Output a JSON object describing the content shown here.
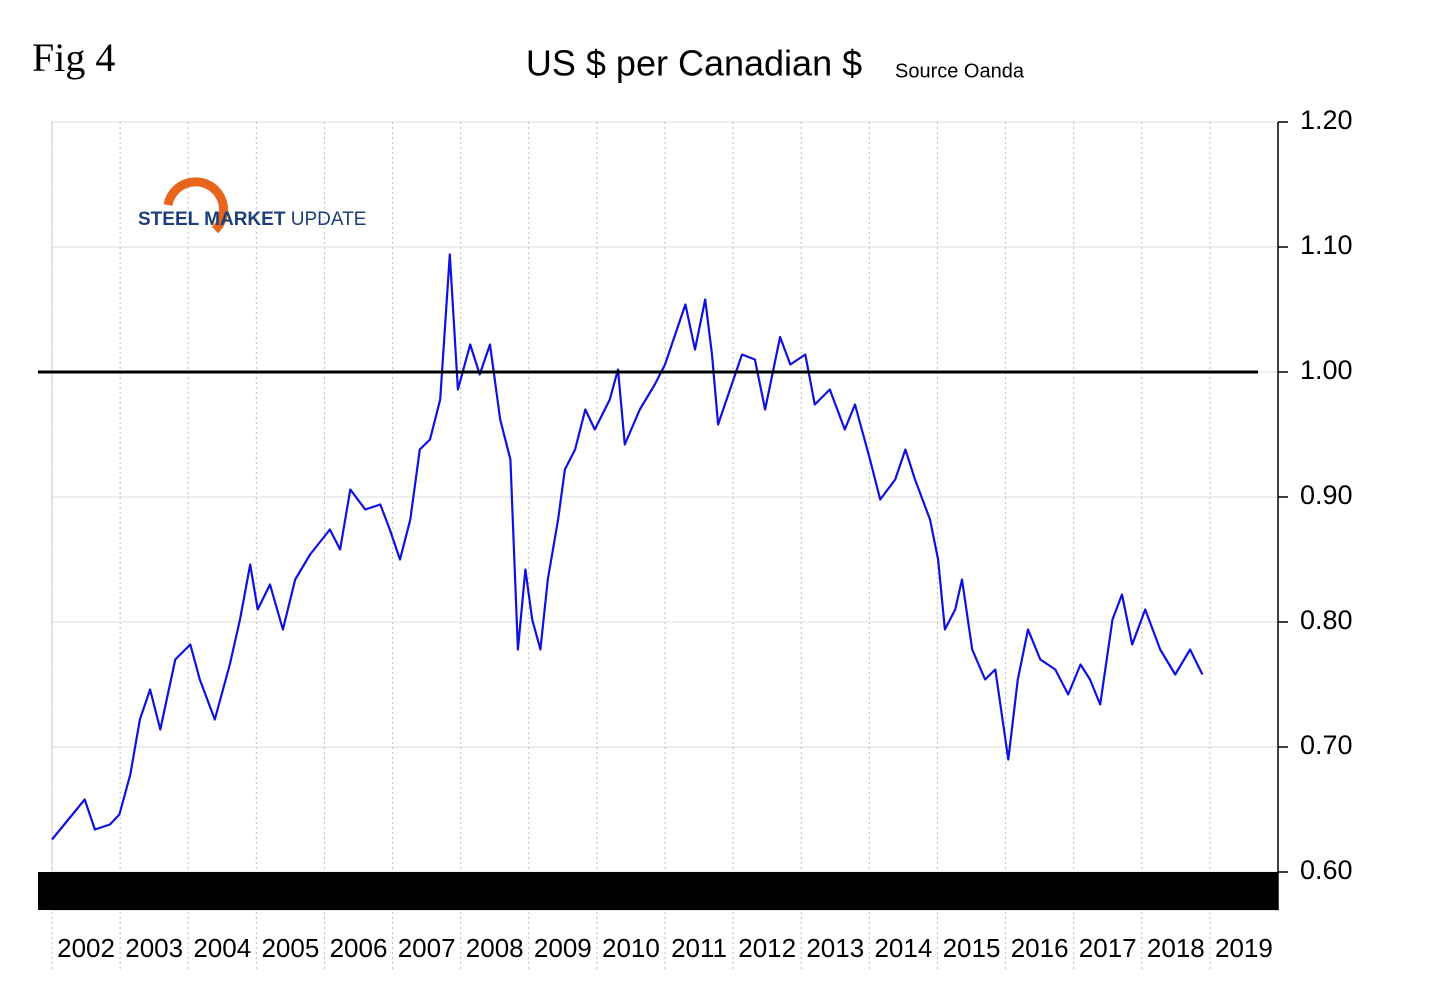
{
  "chart_data": {
    "type": "line",
    "figure_label": "Fig 4",
    "title": "US $ per Canadian $",
    "subtitle": "Source Oanda",
    "logo": {
      "strong": "STEEL MARKET",
      "light": "UPDATE"
    },
    "xlim": [
      2002,
      2020
    ],
    "xticks": [
      2002,
      2003,
      2004,
      2005,
      2006,
      2007,
      2008,
      2009,
      2010,
      2011,
      2012,
      2013,
      2014,
      2015,
      2016,
      2017,
      2018,
      2019
    ],
    "ylim": [
      0.57,
      1.2
    ],
    "yticks": [
      {
        "value": 0.6,
        "label": "0.60"
      },
      {
        "value": 0.7,
        "label": "0.70"
      },
      {
        "value": 0.8,
        "label": "0.80"
      },
      {
        "value": 0.9,
        "label": "0.90"
      },
      {
        "value": 1.0,
        "label": "1.00"
      },
      {
        "value": 1.1,
        "label": "1.10"
      },
      {
        "value": 1.2,
        "label": "1.20"
      }
    ],
    "grid": true,
    "reference_line": 1,
    "x": [
      2002.0,
      2002.48,
      2002.63,
      2002.85,
      2002.99,
      2003.15,
      2003.29,
      2003.44,
      2003.59,
      2003.81,
      2004.03,
      2004.17,
      2004.39,
      2004.61,
      2004.76,
      2004.91,
      2005.02,
      2005.2,
      2005.39,
      2005.57,
      2005.79,
      2006.08,
      2006.23,
      2006.38,
      2006.6,
      2006.82,
      2006.96,
      2007.11,
      2007.26,
      2007.4,
      2007.55,
      2007.7,
      2007.84,
      2007.96,
      2008.14,
      2008.28,
      2008.43,
      2008.58,
      2008.73,
      2008.84,
      2008.95,
      2009.05,
      2009.17,
      2009.28,
      2009.43,
      2009.53,
      2009.68,
      2009.83,
      2009.97,
      2010.19,
      2010.31,
      2010.41,
      2010.63,
      2010.85,
      2011.0,
      2011.3,
      2011.44,
      2011.59,
      2011.69,
      2011.78,
      2011.93,
      2012.13,
      2012.32,
      2012.47,
      2012.69,
      2012.84,
      2013.06,
      2013.2,
      2013.42,
      2013.64,
      2013.79,
      2014.01,
      2014.16,
      2014.38,
      2014.53,
      2014.67,
      2014.89,
      2015.01,
      2015.11,
      2015.26,
      2015.36,
      2015.51,
      2015.7,
      2015.85,
      2016.04,
      2016.18,
      2016.33,
      2016.51,
      2016.73,
      2016.92,
      2017.1,
      2017.24,
      2017.39,
      2017.57,
      2017.71,
      2017.86,
      2018.05,
      2018.27,
      2018.49,
      2018.71,
      2018.89
    ],
    "series": [
      {
        "color": "#1010e0",
        "values": [
          0.626,
          0.658,
          0.634,
          0.638,
          0.646,
          0.678,
          0.722,
          0.746,
          0.714,
          0.77,
          0.782,
          0.754,
          0.722,
          0.766,
          0.802,
          0.846,
          0.81,
          0.83,
          0.794,
          0.834,
          0.854,
          0.874,
          0.858,
          0.906,
          0.89,
          0.894,
          0.874,
          0.85,
          0.882,
          0.938,
          0.946,
          0.978,
          1.094,
          0.986,
          1.022,
          0.998,
          1.022,
          0.962,
          0.93,
          0.778,
          0.842,
          0.802,
          0.778,
          0.834,
          0.882,
          0.922,
          0.938,
          0.97,
          0.954,
          0.978,
          1.002,
          0.942,
          0.97,
          0.99,
          1.006,
          1.054,
          1.018,
          1.058,
          1.014,
          0.958,
          0.982,
          1.014,
          1.01,
          0.97,
          1.028,
          1.006,
          1.014,
          0.974,
          0.986,
          0.954,
          0.974,
          0.93,
          0.898,
          0.914,
          0.938,
          0.914,
          0.882,
          0.85,
          0.794,
          0.81,
          0.834,
          0.778,
          0.754,
          0.762,
          0.69,
          0.754,
          0.794,
          0.77,
          0.762,
          0.742,
          0.766,
          0.754,
          0.734,
          0.802,
          0.822,
          0.782,
          0.81,
          0.778,
          0.758,
          0.778,
          0.758
        ]
      }
    ]
  }
}
